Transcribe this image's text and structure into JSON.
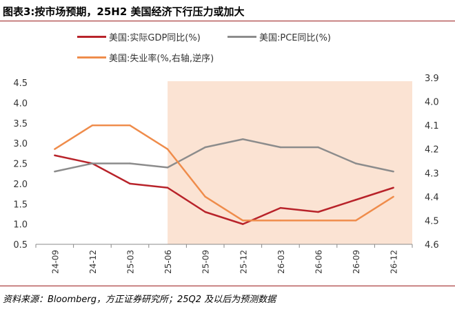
{
  "header": {
    "title": "图表3:按市场预期，25H2 美国经济下行压力或加大"
  },
  "footer": {
    "source": "资料来源：Bloomberg，方正证券研究所；25Q2 及以后为预测数据"
  },
  "chart_data": {
    "type": "line",
    "categories": [
      "24-09",
      "24-12",
      "25-03",
      "25-06",
      "25-09",
      "25-12",
      "26-03",
      "26-06",
      "26-09",
      "26-12"
    ],
    "forecast_shade": {
      "from": "25-06",
      "to": "26-12",
      "color": "#fbe3d3"
    },
    "y_left": {
      "range": [
        0.5,
        4.5
      ],
      "ticks": [
        "4.5",
        "4.0",
        "3.5",
        "3.0",
        "2.5",
        "2.0",
        "1.5",
        "1.0",
        "0.5"
      ]
    },
    "y_right": {
      "range": [
        4.6,
        3.9
      ],
      "inverted": true,
      "ticks": [
        "3.9",
        "4.0",
        "4.1",
        "4.2",
        "4.3",
        "4.4",
        "4.5",
        "4.6"
      ]
    },
    "series": [
      {
        "name": "美国:实际GDP同比(%)",
        "axis": "left",
        "color": "#b8232a",
        "values": [
          2.7,
          2.5,
          2.0,
          1.9,
          1.3,
          1.0,
          1.4,
          1.3,
          1.6,
          1.9
        ]
      },
      {
        "name": "美国:PCE同比(%)",
        "axis": "left",
        "color": "#8c8c8c",
        "values": [
          2.3,
          2.5,
          2.5,
          2.4,
          2.9,
          3.1,
          2.9,
          2.9,
          2.5,
          2.3
        ]
      },
      {
        "name": "美国:失业率(%,右轴,逆序)",
        "axis": "right",
        "color": "#ef8c4b",
        "values": [
          4.2,
          4.1,
          4.1,
          4.2,
          4.4,
          4.5,
          4.5,
          4.5,
          4.5,
          4.4
        ]
      }
    ],
    "grid": false,
    "legend_position": "top"
  }
}
